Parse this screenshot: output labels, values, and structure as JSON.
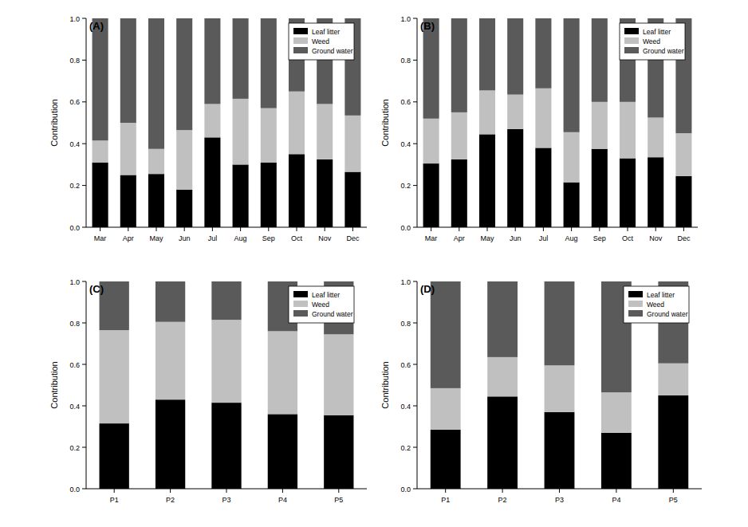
{
  "chart_data": [
    {
      "type": "bar",
      "stacked": true,
      "title": "(A)",
      "y_label": "Contribution",
      "legend": "top-right",
      "categories": [
        "Mar",
        "Apr",
        "May",
        "Jun",
        "Jul",
        "Aug",
        "Sep",
        "Oct",
        "Nov",
        "Dec"
      ],
      "ylim": [
        0,
        1
      ],
      "yticks": [
        {
          "value": 0,
          "label": "0.0"
        },
        {
          "value": 0.2,
          "label": "0.2"
        },
        {
          "value": 0.4,
          "label": "0.4"
        },
        {
          "value": 0.6,
          "label": "0.6"
        },
        {
          "value": 0.8,
          "label": "0.8"
        },
        {
          "value": 1,
          "label": "1.0"
        }
      ],
      "series": [
        {
          "name": "Leaf litter",
          "color": "#000000",
          "values": [
            0.31,
            0.25,
            0.255,
            0.18,
            0.43,
            0.3,
            0.31,
            0.35,
            0.325,
            0.265
          ]
        },
        {
          "name": "Weed",
          "color": "#c0c0c0",
          "values": [
            0.105,
            0.25,
            0.12,
            0.285,
            0.16,
            0.315,
            0.26,
            0.3,
            0.265,
            0.27
          ]
        },
        {
          "name": "Ground water",
          "color": "#5a5a5a",
          "values": [
            0.585,
            0.5,
            0.625,
            0.535,
            0.41,
            0.385,
            0.43,
            0.35,
            0.41,
            0.465
          ]
        }
      ]
    },
    {
      "type": "bar",
      "stacked": true,
      "title": "(B)",
      "y_label": "Contribution",
      "legend": "top-right",
      "categories": [
        "Mar",
        "Apr",
        "May",
        "Jun",
        "Jul",
        "Aug",
        "Sep",
        "Oct",
        "Nov",
        "Dec"
      ],
      "ylim": [
        0,
        1
      ],
      "yticks": [
        {
          "value": 0,
          "label": "0.0"
        },
        {
          "value": 0.2,
          "label": "0.2"
        },
        {
          "value": 0.4,
          "label": "0.4"
        },
        {
          "value": 0.6,
          "label": "0.6"
        },
        {
          "value": 0.8,
          "label": "0.8"
        },
        {
          "value": 1,
          "label": "1.0"
        }
      ],
      "series": [
        {
          "name": "Leaf litter",
          "color": "#000000",
          "values": [
            0.305,
            0.325,
            0.445,
            0.47,
            0.38,
            0.215,
            0.375,
            0.33,
            0.335,
            0.245
          ]
        },
        {
          "name": "Weed",
          "color": "#c0c0c0",
          "values": [
            0.215,
            0.225,
            0.21,
            0.165,
            0.285,
            0.24,
            0.225,
            0.27,
            0.19,
            0.205
          ]
        },
        {
          "name": "Ground water",
          "color": "#5a5a5a",
          "values": [
            0.48,
            0.45,
            0.345,
            0.365,
            0.335,
            0.545,
            0.4,
            0.4,
            0.475,
            0.55
          ]
        }
      ]
    },
    {
      "type": "bar",
      "stacked": true,
      "title": "(C)",
      "y_label": "Contribution",
      "legend": "top-right",
      "categories": [
        "P1",
        "P2",
        "P3",
        "P4",
        "P5"
      ],
      "ylim": [
        0,
        1
      ],
      "yticks": [
        {
          "value": 0,
          "label": "0.0"
        },
        {
          "value": 0.2,
          "label": "0.2"
        },
        {
          "value": 0.4,
          "label": "0.4"
        },
        {
          "value": 0.6,
          "label": "0.6"
        },
        {
          "value": 0.8,
          "label": "0.8"
        },
        {
          "value": 1,
          "label": "1.0"
        }
      ],
      "series": [
        {
          "name": "Leaf litter",
          "color": "#000000",
          "values": [
            0.315,
            0.43,
            0.415,
            0.36,
            0.355
          ]
        },
        {
          "name": "Weed",
          "color": "#c0c0c0",
          "values": [
            0.45,
            0.375,
            0.4,
            0.4,
            0.39
          ]
        },
        {
          "name": "Ground water",
          "color": "#5a5a5a",
          "values": [
            0.235,
            0.195,
            0.185,
            0.24,
            0.255
          ]
        }
      ]
    },
    {
      "type": "bar",
      "stacked": true,
      "title": "(D)",
      "y_label": "Contribution",
      "legend": "top-right",
      "categories": [
        "P1",
        "P2",
        "P3",
        "P4",
        "P5"
      ],
      "ylim": [
        0,
        1
      ],
      "yticks": [
        {
          "value": 0,
          "label": "0.0"
        },
        {
          "value": 0.2,
          "label": "0.2"
        },
        {
          "value": 0.4,
          "label": "0.4"
        },
        {
          "value": 0.6,
          "label": "0.6"
        },
        {
          "value": 0.8,
          "label": "0.8"
        },
        {
          "value": 1,
          "label": "1.0"
        }
      ],
      "series": [
        {
          "name": "Leaf litter",
          "color": "#000000",
          "values": [
            0.285,
            0.445,
            0.37,
            0.27,
            0.45
          ]
        },
        {
          "name": "Weed",
          "color": "#c0c0c0",
          "values": [
            0.2,
            0.19,
            0.225,
            0.195,
            0.155
          ]
        },
        {
          "name": "Ground water",
          "color": "#5a5a5a",
          "values": [
            0.515,
            0.365,
            0.405,
            0.535,
            0.395
          ]
        }
      ]
    }
  ]
}
